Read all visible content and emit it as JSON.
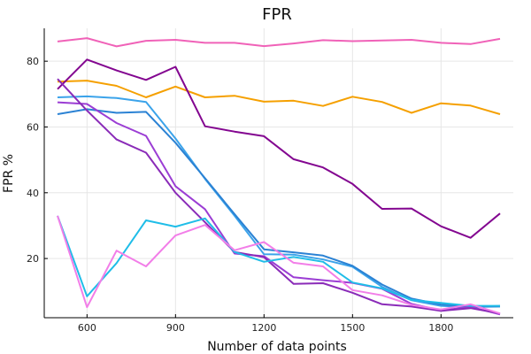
{
  "chart_data": {
    "type": "line",
    "title": "FPR",
    "xlabel": "Number of data points",
    "ylabel": "FPR %",
    "xlim": [
      455,
      2045
    ],
    "ylim": [
      2,
      90
    ],
    "xticks": [
      600,
      900,
      1200,
      1500,
      1800
    ],
    "yticks": [
      20,
      40,
      60,
      80
    ],
    "grid": true,
    "legend": "none",
    "x": [
      500,
      600,
      700,
      800,
      900,
      1000,
      1100,
      1200,
      1300,
      1400,
      1500,
      1600,
      1700,
      1800,
      1900,
      2000
    ],
    "series": [
      {
        "color": "#f062b8",
        "values": [
          86.0,
          87.0,
          84.5,
          86.2,
          86.5,
          85.6,
          85.6,
          84.6,
          85.4,
          86.4,
          86.1,
          86.3,
          86.5,
          85.6,
          85.2,
          86.8
        ]
      },
      {
        "color": "#f5a000",
        "values": [
          73.8,
          74.1,
          72.5,
          69.0,
          72.3,
          69.0,
          69.5,
          67.7,
          68.0,
          66.4,
          69.2,
          67.6,
          64.3,
          67.2,
          66.5,
          63.9
        ]
      },
      {
        "color": "#830690",
        "values": [
          71.5,
          80.5,
          77.2,
          74.3,
          78.3,
          60.2,
          58.6,
          57.2,
          50.2,
          47.7,
          42.7,
          35.1,
          35.2,
          29.8,
          26.3,
          33.7
        ]
      },
      {
        "color": "#3ba3ea",
        "values": [
          69.0,
          69.3,
          68.8,
          67.6,
          56.5,
          44.2,
          33.0,
          21.3,
          21.2,
          19.7,
          17.5,
          11.4,
          7.3,
          5.6,
          5.2,
          5.6
        ]
      },
      {
        "color": "#2b82d4",
        "values": [
          63.9,
          65.4,
          64.3,
          64.6,
          55.2,
          44.4,
          33.5,
          22.8,
          21.9,
          20.9,
          17.8,
          12.1,
          7.8,
          6.0,
          5.3,
          5.4
        ]
      },
      {
        "color": "#9b3dd4",
        "values": [
          67.5,
          67.0,
          61.2,
          57.3,
          42.0,
          35.0,
          21.5,
          20.7,
          14.3,
          13.4,
          12.6,
          10.8,
          6.2,
          4.2,
          5.3,
          3.0
        ]
      },
      {
        "color": "#8a2bb8",
        "values": [
          74.6,
          65.0,
          56.2,
          52.2,
          40.0,
          31.0,
          22.0,
          20.4,
          12.3,
          12.5,
          9.6,
          6.1,
          5.4,
          4.1,
          4.9,
          3.3
        ]
      },
      {
        "color": "#1fbde8",
        "values": [
          33.0,
          8.5,
          18.6,
          31.6,
          29.7,
          32.2,
          22.0,
          19.0,
          20.5,
          19.0,
          12.7,
          10.9,
          7.4,
          6.5,
          5.6,
          5.6
        ]
      },
      {
        "color": "#f27ee8",
        "values": [
          33.0,
          5.2,
          22.4,
          17.6,
          27.0,
          30.2,
          22.5,
          25.0,
          18.7,
          17.6,
          10.4,
          8.8,
          5.9,
          4.5,
          6.1,
          3.3
        ]
      }
    ]
  }
}
